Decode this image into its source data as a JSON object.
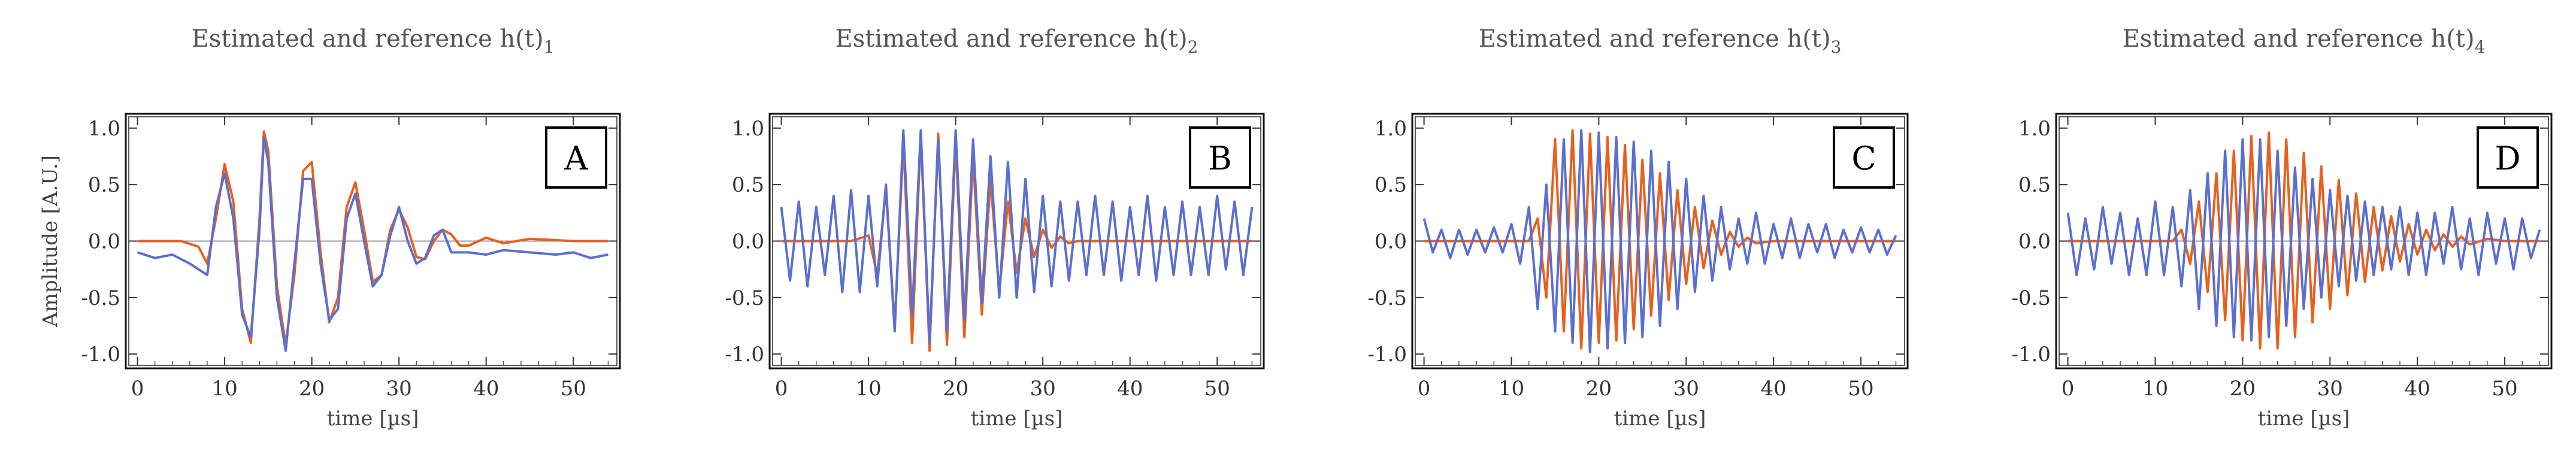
{
  "chart_data": [
    {
      "type": "line",
      "title": "Estimated and reference h(t)",
      "title_subscript": "1",
      "badge": "A",
      "xlabel": "time [µs]",
      "ylabel": "Amplitude [A.U.]",
      "xlim": [
        -1,
        55
      ],
      "ylim": [
        -1.1,
        1.1
      ],
      "xticks": [
        0,
        10,
        20,
        30,
        40,
        50
      ],
      "yticks": [
        -1.0,
        -0.5,
        0.0,
        0.5,
        1.0
      ],
      "ytick_labels": [
        "-1.0",
        "-0.5",
        "0.0",
        "0.5",
        "1.0"
      ],
      "series": [
        {
          "name": "reference",
          "color": "#e8601c",
          "x": [
            0,
            5,
            7,
            8,
            9,
            10,
            11,
            12,
            13,
            14,
            14.5,
            15,
            16,
            17,
            18,
            19,
            20,
            21,
            22,
            23,
            24,
            25,
            26,
            27,
            28,
            29,
            30,
            31,
            32,
            33,
            34,
            35,
            36,
            37,
            38,
            40,
            42,
            45,
            50,
            54
          ],
          "values": [
            0,
            0,
            -0.05,
            -0.2,
            0.2,
            0.68,
            0.35,
            -0.6,
            -0.9,
            0.2,
            0.97,
            0.8,
            -0.4,
            -0.92,
            -0.3,
            0.62,
            0.7,
            -0.1,
            -0.72,
            -0.5,
            0.3,
            0.52,
            0.1,
            -0.36,
            -0.3,
            0.1,
            0.28,
            0.12,
            -0.14,
            -0.16,
            0,
            0.1,
            0.06,
            -0.04,
            -0.04,
            0.03,
            -0.02,
            0.02,
            0,
            0
          ]
        },
        {
          "name": "estimated",
          "color": "#5b6fd1",
          "x": [
            0,
            2,
            4,
            6,
            8,
            9,
            10,
            11,
            12,
            13,
            14,
            14.5,
            15,
            16,
            17,
            18,
            19,
            20,
            21,
            22,
            23,
            24,
            25,
            26,
            27,
            28,
            29,
            30,
            31,
            32,
            33,
            34,
            35,
            36,
            38,
            40,
            42,
            45,
            48,
            50,
            52,
            54
          ],
          "values": [
            -0.1,
            -0.15,
            -0.12,
            -0.2,
            -0.3,
            0.3,
            0.6,
            0.2,
            -0.65,
            -0.85,
            0.1,
            0.92,
            0.7,
            -0.5,
            -0.97,
            -0.2,
            0.55,
            0.55,
            -0.2,
            -0.7,
            -0.6,
            0.2,
            0.42,
            0,
            -0.4,
            -0.3,
            0.05,
            0.3,
            0,
            -0.2,
            -0.15,
            0.05,
            0.1,
            -0.1,
            -0.1,
            -0.12,
            -0.08,
            -0.1,
            -0.12,
            -0.1,
            -0.15,
            -0.12
          ]
        }
      ]
    },
    {
      "type": "line",
      "title": "Estimated and reference h(t)",
      "title_subscript": "2",
      "badge": "B",
      "xlabel": "time [µs]",
      "ylabel": "",
      "xlim": [
        -1,
        55
      ],
      "ylim": [
        -1.1,
        1.1
      ],
      "xticks": [
        0,
        10,
        20,
        30,
        40,
        50
      ],
      "yticks": [
        -1.0,
        -0.5,
        0.0,
        0.5,
        1.0
      ],
      "ytick_labels": [
        "-1.0",
        "-0.5",
        "0.0",
        "0.5",
        "1.0"
      ],
      "series": [
        {
          "name": "reference",
          "color": "#e8601c",
          "x": [
            0,
            8,
            10,
            11,
            12,
            13,
            14,
            15,
            16,
            17,
            18,
            19,
            20,
            21,
            22,
            23,
            24,
            25,
            26,
            27,
            28,
            29,
            30,
            31,
            32,
            33,
            34,
            36,
            38,
            40,
            45,
            54
          ],
          "values": [
            0,
            0,
            0.05,
            -0.3,
            0.45,
            -0.75,
            0.88,
            -0.9,
            0.95,
            -0.97,
            0.95,
            -0.92,
            0.88,
            -0.85,
            0.75,
            -0.65,
            0.55,
            -0.45,
            0.35,
            -0.28,
            0.2,
            -0.14,
            0.1,
            -0.06,
            0.04,
            -0.02,
            0,
            0,
            0,
            0,
            0,
            0
          ]
        },
        {
          "name": "estimated",
          "color": "#5b6fd1",
          "x": [
            0,
            1,
            2,
            3,
            4,
            5,
            6,
            7,
            8,
            9,
            10,
            11,
            12,
            13,
            14,
            15,
            16,
            17,
            18,
            19,
            20,
            21,
            22,
            23,
            24,
            25,
            26,
            27,
            28,
            29,
            30,
            31,
            32,
            33,
            34,
            35,
            36,
            37,
            38,
            39,
            40,
            41,
            42,
            43,
            44,
            45,
            46,
            47,
            48,
            49,
            50,
            51,
            52,
            53,
            54
          ],
          "values": [
            0.3,
            -0.35,
            0.35,
            -0.4,
            0.3,
            -0.3,
            0.4,
            -0.45,
            0.45,
            -0.45,
            0.4,
            -0.4,
            0.5,
            -0.8,
            0.98,
            -0.65,
            0.98,
            -0.9,
            0.9,
            -0.8,
            0.98,
            -0.7,
            0.9,
            -0.55,
            0.75,
            -0.5,
            0.7,
            -0.5,
            0.55,
            -0.45,
            0.4,
            -0.4,
            0.35,
            -0.35,
            0.35,
            -0.3,
            0.4,
            -0.3,
            0.35,
            -0.35,
            0.3,
            -0.3,
            0.4,
            -0.35,
            0.3,
            -0.3,
            0.35,
            -0.3,
            0.3,
            -0.3,
            0.4,
            -0.25,
            0.35,
            -0.3,
            0.3
          ]
        }
      ]
    },
    {
      "type": "line",
      "title": "Estimated and reference h(t)",
      "title_subscript": "3",
      "badge": "C",
      "xlabel": "time [µs]",
      "ylabel": "",
      "xlim": [
        -1,
        55
      ],
      "ylim": [
        -1.1,
        1.1
      ],
      "xticks": [
        0,
        10,
        20,
        30,
        40,
        50
      ],
      "yticks": [
        -1.0,
        -0.5,
        0.0,
        0.5,
        1.0
      ],
      "ytick_labels": [
        "-1.0",
        "-0.5",
        "0.0",
        "0.5",
        "1.0"
      ],
      "series": [
        {
          "name": "reference",
          "color": "#e8601c",
          "x": [
            0,
            12,
            13,
            14,
            15,
            16,
            17,
            18,
            19,
            20,
            21,
            22,
            23,
            24,
            25,
            26,
            27,
            28,
            29,
            30,
            31,
            32,
            33,
            34,
            35,
            36,
            37,
            38,
            40,
            45,
            54
          ],
          "values": [
            0,
            0,
            0.2,
            -0.5,
            0.9,
            -0.8,
            0.98,
            -0.95,
            0.95,
            -0.9,
            0.92,
            -0.88,
            0.85,
            -0.78,
            0.72,
            -0.66,
            0.6,
            -0.52,
            0.45,
            -0.38,
            0.3,
            -0.24,
            0.18,
            -0.12,
            0.08,
            -0.05,
            0.03,
            -0.02,
            0,
            0,
            0
          ]
        },
        {
          "name": "estimated",
          "color": "#5b6fd1",
          "x": [
            0,
            1,
            2,
            3,
            4,
            5,
            6,
            7,
            8,
            9,
            10,
            11,
            12,
            13,
            14,
            15,
            16,
            17,
            18,
            19,
            20,
            21,
            22,
            23,
            24,
            25,
            26,
            27,
            28,
            29,
            30,
            31,
            32,
            33,
            34,
            35,
            36,
            37,
            38,
            39,
            40,
            41,
            42,
            43,
            44,
            45,
            46,
            47,
            48,
            49,
            50,
            51,
            52,
            53,
            54
          ],
          "values": [
            0.2,
            -0.1,
            0.1,
            -0.15,
            0.1,
            -0.12,
            0.1,
            -0.1,
            0.12,
            -0.1,
            0.15,
            -0.2,
            0.3,
            -0.6,
            0.5,
            -0.8,
            0.9,
            -0.9,
            0.98,
            -0.98,
            0.96,
            -0.95,
            0.92,
            -0.9,
            0.88,
            -0.85,
            0.8,
            -0.75,
            0.7,
            -0.6,
            0.55,
            -0.45,
            0.4,
            -0.35,
            0.3,
            -0.25,
            0.2,
            -0.2,
            0.25,
            -0.2,
            0.15,
            -0.15,
            0.2,
            -0.15,
            0.15,
            -0.1,
            0.15,
            -0.15,
            0.1,
            -0.1,
            0.12,
            -0.1,
            0.1,
            -0.12,
            0.05
          ]
        }
      ]
    },
    {
      "type": "line",
      "title": "Estimated and reference h(t)",
      "title_subscript": "4",
      "badge": "D",
      "xlabel": "time [µs]",
      "ylabel": "",
      "xlim": [
        -1,
        55
      ],
      "ylim": [
        -1.1,
        1.1
      ],
      "xticks": [
        0,
        10,
        20,
        30,
        40,
        50
      ],
      "yticks": [
        -1.0,
        -0.5,
        0.0,
        0.5,
        1.0
      ],
      "ytick_labels": [
        "-1.0",
        "-0.5",
        "0.0",
        "0.5",
        "1.0"
      ],
      "series": [
        {
          "name": "reference",
          "color": "#e8601c",
          "x": [
            0,
            12,
            13,
            14,
            15,
            16,
            17,
            18,
            19,
            20,
            21,
            22,
            23,
            24,
            25,
            26,
            27,
            28,
            29,
            30,
            31,
            32,
            33,
            34,
            35,
            36,
            37,
            38,
            39,
            40,
            41,
            42,
            43,
            44,
            45,
            46,
            48,
            50,
            54
          ],
          "values": [
            0,
            0,
            0.1,
            -0.2,
            0.35,
            -0.45,
            0.6,
            -0.7,
            0.8,
            -0.88,
            0.93,
            -0.95,
            0.96,
            -0.95,
            0.9,
            -0.85,
            0.78,
            -0.72,
            0.66,
            -0.6,
            0.54,
            -0.48,
            0.42,
            -0.36,
            0.3,
            -0.26,
            0.22,
            -0.18,
            0.15,
            -0.12,
            0.1,
            -0.08,
            0.06,
            -0.05,
            0.04,
            -0.03,
            0.02,
            0,
            0
          ]
        },
        {
          "name": "estimated",
          "color": "#5b6fd1",
          "x": [
            0,
            1,
            2,
            3,
            4,
            5,
            6,
            7,
            8,
            9,
            10,
            11,
            12,
            13,
            14,
            15,
            16,
            17,
            18,
            19,
            20,
            21,
            22,
            23,
            24,
            25,
            26,
            27,
            28,
            29,
            30,
            31,
            32,
            33,
            34,
            35,
            36,
            37,
            38,
            39,
            40,
            41,
            42,
            43,
            44,
            45,
            46,
            47,
            48,
            49,
            50,
            51,
            52,
            53,
            54
          ],
          "values": [
            0.25,
            -0.3,
            0.2,
            -0.25,
            0.3,
            -0.2,
            0.25,
            -0.3,
            0.2,
            -0.3,
            0.35,
            -0.3,
            0.3,
            -0.4,
            0.45,
            -0.6,
            0.6,
            -0.75,
            0.8,
            -0.85,
            0.9,
            -0.88,
            0.9,
            -0.85,
            0.8,
            -0.75,
            0.65,
            -0.6,
            0.55,
            -0.5,
            0.45,
            -0.4,
            0.4,
            -0.35,
            0.35,
            -0.3,
            0.3,
            -0.25,
            0.3,
            -0.3,
            0.25,
            -0.3,
            0.25,
            -0.2,
            0.3,
            -0.25,
            0.2,
            -0.3,
            0.25,
            -0.2,
            0.2,
            -0.25,
            0.2,
            -0.15,
            0.1
          ]
        }
      ]
    }
  ]
}
